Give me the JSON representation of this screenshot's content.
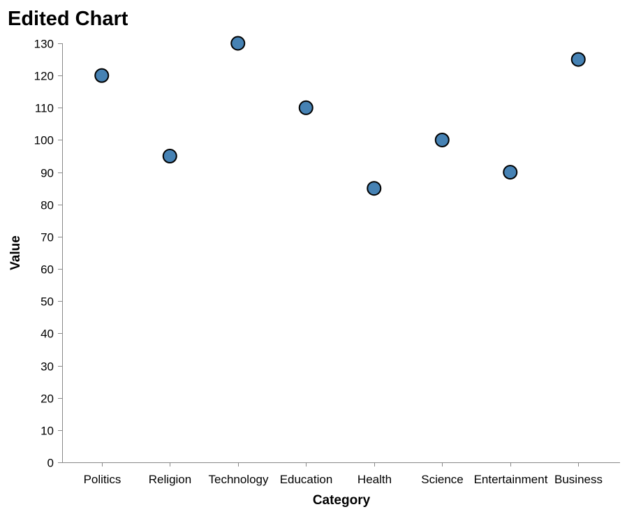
{
  "chart_data": {
    "type": "scatter",
    "title": "Edited Chart",
    "xlabel": "Category",
    "ylabel": "Value",
    "categories": [
      "Politics",
      "Religion",
      "Technology",
      "Education",
      "Health",
      "Science",
      "Entertainment",
      "Business"
    ],
    "values": [
      120,
      95,
      130,
      110,
      85,
      100,
      90,
      125
    ],
    "ylim": [
      0,
      130
    ],
    "yticks": [
      0,
      10,
      20,
      30,
      40,
      50,
      60,
      70,
      80,
      90,
      100,
      110,
      120,
      130
    ],
    "grid": false,
    "colors": {
      "point_fill": "#4682b4",
      "point_stroke": "#000000",
      "axis": "#888888"
    }
  }
}
